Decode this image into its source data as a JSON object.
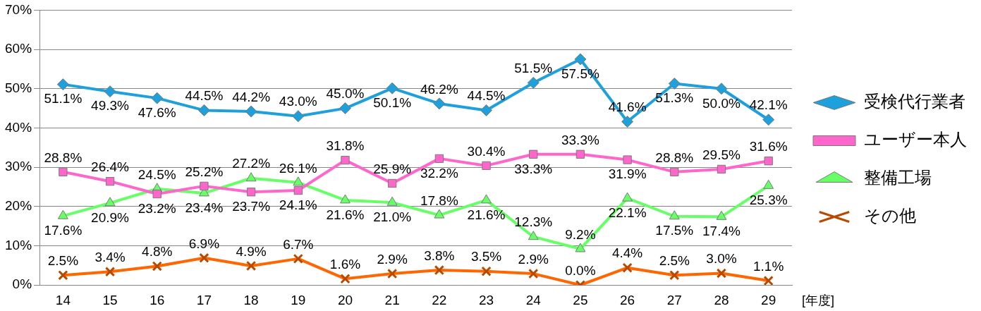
{
  "chart_data": {
    "type": "line",
    "xlabel": "[年度]",
    "categories": [
      "14",
      "15",
      "16",
      "17",
      "18",
      "19",
      "20",
      "21",
      "22",
      "23",
      "24",
      "25",
      "26",
      "27",
      "28",
      "29"
    ],
    "series": [
      {
        "name": "受検代行業者",
        "color": "#1ea0dc",
        "marker": "diamond",
        "values": [
          51.1,
          49.3,
          47.6,
          44.5,
          44.2,
          43.0,
          45.0,
          50.1,
          46.2,
          44.5,
          51.5,
          57.5,
          41.6,
          51.3,
          50.0,
          42.1
        ],
        "value_labels": [
          "51.1%",
          "49.3%",
          "47.6%",
          "44.5%",
          "44.2%",
          "43.0%",
          "45.0%",
          "50.1%",
          "46.2%",
          "44.5%",
          "51.5%",
          "57.5%",
          "41.6%",
          "51.3%",
          "50.0%",
          "42.1%"
        ]
      },
      {
        "name": "ユーザー本人",
        "color": "#ff66cc",
        "marker": "square",
        "values": [
          28.8,
          26.4,
          23.2,
          25.2,
          23.7,
          24.1,
          31.8,
          25.9,
          32.2,
          30.4,
          33.3,
          33.3,
          31.9,
          28.8,
          29.5,
          31.6
        ],
        "value_labels": [
          "28.8%",
          "26.4%",
          "23.2%",
          "25.2%",
          "23.7%",
          "24.1%",
          "31.8%",
          "25.9%",
          "32.2%",
          "30.4%",
          "33.3%",
          "33.3%",
          "31.9%",
          "28.8%",
          "29.5%",
          "31.6%"
        ]
      },
      {
        "name": "整備工場",
        "color": "#66ff66",
        "marker": "triangle",
        "values": [
          17.6,
          20.9,
          24.5,
          23.4,
          27.2,
          26.1,
          21.6,
          21.0,
          17.8,
          21.6,
          12.3,
          9.2,
          22.1,
          17.5,
          17.4,
          25.3
        ],
        "value_labels": [
          "17.6%",
          "20.9%",
          "24.5%",
          "23.4%",
          "27.2%",
          "26.1%",
          "21.6%",
          "21.0%",
          "17.8%",
          "21.6%",
          "12.3%",
          "9.2%",
          "22.1%",
          "17.5%",
          "17.4%",
          "25.3%"
        ]
      },
      {
        "name": "その他",
        "color": "#ff6600",
        "marker": "cross",
        "values": [
          2.5,
          3.4,
          4.8,
          6.9,
          4.9,
          6.7,
          1.6,
          2.9,
          3.8,
          3.5,
          2.9,
          0.0,
          4.4,
          2.5,
          3.0,
          1.1
        ],
        "value_labels": [
          "2.5%",
          "3.4%",
          "4.8%",
          "6.9%",
          "4.9%",
          "6.7%",
          "1.6%",
          "2.9%",
          "3.8%",
          "3.5%",
          "2.9%",
          "0.0%",
          "4.4%",
          "2.5%",
          "3.0%",
          "1.1%"
        ]
      }
    ],
    "ylim": [
      0,
      70
    ],
    "yticks": [
      {
        "value": 0,
        "label": "0%"
      },
      {
        "value": 10,
        "label": "10%"
      },
      {
        "value": 20,
        "label": "20%"
      },
      {
        "value": 30,
        "label": "30%"
      },
      {
        "value": 40,
        "label": "40%"
      },
      {
        "value": 50,
        "label": "50%"
      },
      {
        "value": 60,
        "label": "60%"
      },
      {
        "value": 70,
        "label": "70%"
      }
    ],
    "grid": "y",
    "legend": "right",
    "line_style": "solid"
  }
}
